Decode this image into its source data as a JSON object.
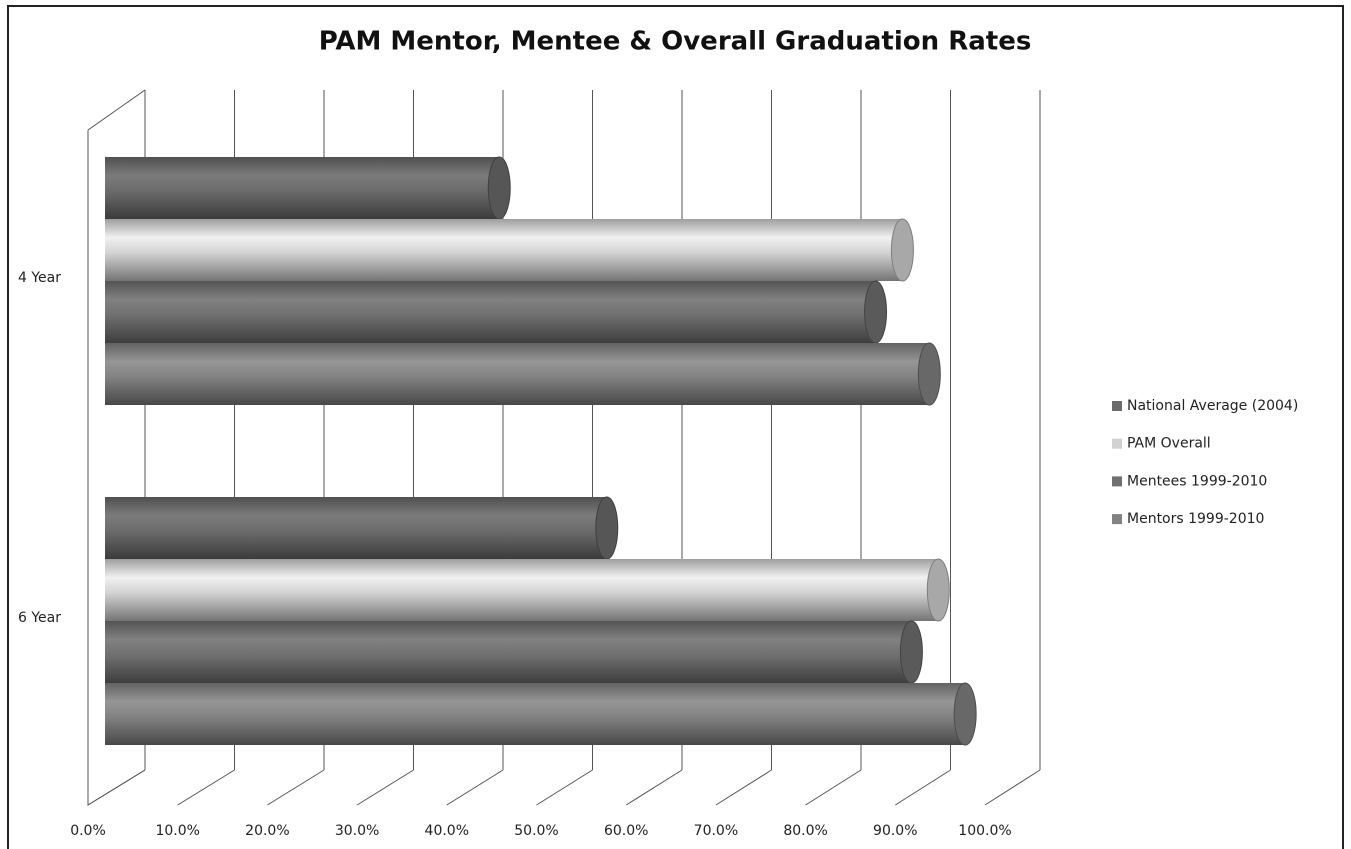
{
  "chart_data": {
    "type": "bar",
    "orientation": "horizontal",
    "title": "PAM Mentor, Mentee & Overall Graduation Rates",
    "categories": [
      "4 Year",
      "6 Year"
    ],
    "series": [
      {
        "name": "National Average (2004)",
        "color": "#6b6b6b",
        "values": [
          44,
          56
        ]
      },
      {
        "name": "PAM Overall",
        "color": "#d2d2d2",
        "values": [
          89,
          93
        ]
      },
      {
        "name": "Mentees 1999-2010",
        "color": "#707070",
        "values": [
          86,
          90
        ]
      },
      {
        "name": "Mentors 1999-2010",
        "color": "#828282",
        "values": [
          92,
          96
        ]
      }
    ],
    "xlim": [
      0,
      100
    ],
    "xticks": [
      {
        "value": 0,
        "label": "0.0%"
      },
      {
        "value": 10,
        "label": "10.0%"
      },
      {
        "value": 20,
        "label": "20.0%"
      },
      {
        "value": 30,
        "label": "30.0%"
      },
      {
        "value": 40,
        "label": "40.0%"
      },
      {
        "value": 50,
        "label": "50.0%"
      },
      {
        "value": 60,
        "label": "60.0%"
      },
      {
        "value": 70,
        "label": "70.0%"
      },
      {
        "value": 80,
        "label": "80.0%"
      },
      {
        "value": 90,
        "label": "90.0%"
      },
      {
        "value": 100,
        "label": "100.0%"
      }
    ],
    "grid": true,
    "legend": "right"
  }
}
